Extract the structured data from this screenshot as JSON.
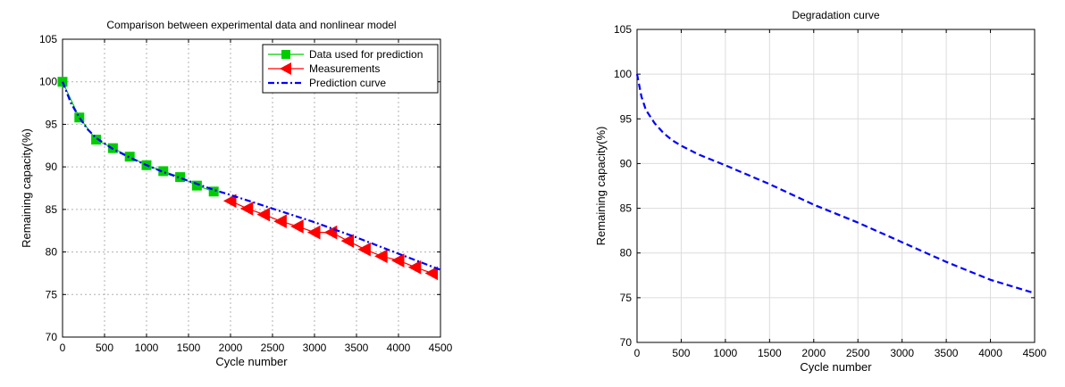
{
  "chart_data": [
    {
      "type": "line",
      "title": "Comparison between experimental data and nonlinear model",
      "xlabel": "Cycle number",
      "ylabel": "Remaining capacity(%)",
      "xlim": [
        0,
        4500
      ],
      "ylim": [
        70,
        105
      ],
      "xticks": [
        0,
        500,
        1000,
        1500,
        2000,
        2500,
        3000,
        3500,
        4000,
        4500
      ],
      "yticks": [
        70,
        75,
        80,
        85,
        90,
        95,
        100,
        105
      ],
      "grid": true,
      "grid_style": "dotted",
      "legend_position": "top-right",
      "series": [
        {
          "name": "Data used for prediction",
          "color": "#00cc00",
          "marker": "square",
          "x": [
            0,
            200,
            400,
            600,
            800,
            1000,
            1200,
            1400,
            1600,
            1800
          ],
          "y": [
            100.0,
            95.8,
            93.2,
            92.2,
            91.2,
            90.2,
            89.5,
            88.8,
            87.8,
            87.1
          ]
        },
        {
          "name": "Measurements",
          "color": "#ff0000",
          "marker": "triangle-left",
          "x": [
            2000,
            2200,
            2400,
            2600,
            2800,
            3000,
            3200,
            3400,
            3600,
            3800,
            4000,
            4200,
            4400
          ],
          "y": [
            86.0,
            85.1,
            84.4,
            83.6,
            83.0,
            82.3,
            82.3,
            81.3,
            80.3,
            79.5,
            79.0,
            78.2,
            77.5
          ]
        },
        {
          "name": "Prediction curve",
          "color": "#0000ff",
          "style": "dash-dot",
          "x": [
            0,
            100,
            200,
            300,
            400,
            600,
            800,
            1000,
            1200,
            1400,
            1600,
            1800,
            2000,
            2500,
            3000,
            3500,
            4000,
            4500
          ],
          "y": [
            100.0,
            97.5,
            95.8,
            94.4,
            93.4,
            92.1,
            91.1,
            90.2,
            89.4,
            88.7,
            88.0,
            87.3,
            86.7,
            85.1,
            83.5,
            81.7,
            79.8,
            77.9
          ]
        }
      ]
    },
    {
      "type": "line",
      "title": "Degradation curve",
      "xlabel": "Cycle number",
      "ylabel": "Remaining capacity(%)",
      "xlim": [
        0,
        4500
      ],
      "ylim": [
        70,
        105
      ],
      "xticks": [
        0,
        500,
        1000,
        1500,
        2000,
        2500,
        3000,
        3500,
        4000,
        4500
      ],
      "yticks": [
        70,
        75,
        80,
        85,
        90,
        95,
        100,
        105
      ],
      "grid": true,
      "grid_style": "solid-light",
      "series": [
        {
          "color": "#0000ff",
          "style": "dashed",
          "x": [
            0,
            50,
            100,
            200,
            300,
            400,
            500,
            700,
            1000,
            1500,
            2000,
            2500,
            3000,
            3500,
            4000,
            4500
          ],
          "y": [
            100.0,
            97.5,
            96.0,
            94.5,
            93.4,
            92.6,
            92.0,
            91.0,
            89.8,
            87.7,
            85.4,
            83.4,
            81.2,
            79.0,
            77.0,
            75.5
          ]
        }
      ]
    }
  ]
}
